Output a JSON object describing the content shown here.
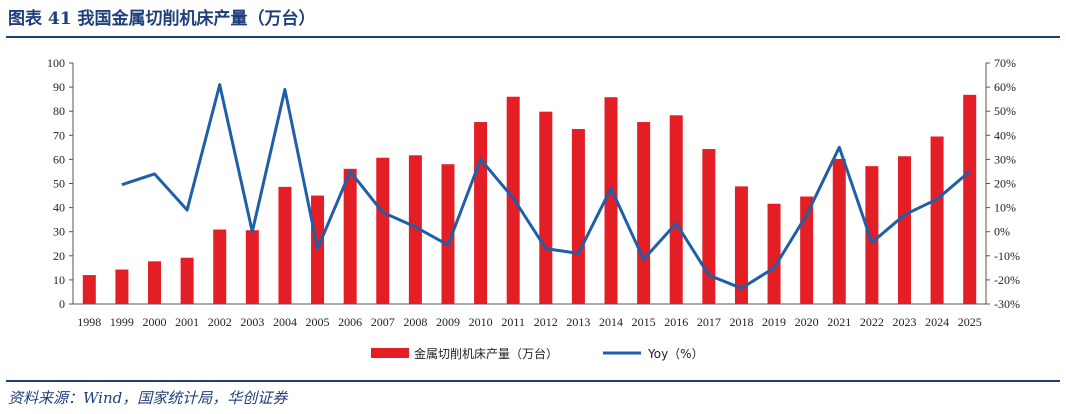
{
  "figure": {
    "title": "图表 41    我国金属切削机床产量（万台）",
    "source": "资料来源：Wind，国家统计局，华创证券"
  },
  "colors": {
    "bar": "#e31e24",
    "line": "#1f5fa8",
    "accent": "#1f3f7a"
  },
  "chart_data": {
    "type": "bar",
    "categories": [
      "1998",
      "1999",
      "2000",
      "2001",
      "2002",
      "2003",
      "2004",
      "2005",
      "2006",
      "2007",
      "2008",
      "2009",
      "2010",
      "2011",
      "2012",
      "2013",
      "2014",
      "2015",
      "2016",
      "2017",
      "2018",
      "2019",
      "2020",
      "2021",
      "2022",
      "2023",
      "2024",
      "2025"
    ],
    "series": [
      {
        "name": "金属切削机床产量（万台）",
        "type": "bar",
        "axis": "left",
        "values": [
          12,
          14.3,
          17.7,
          19.2,
          30.9,
          30.6,
          48.6,
          45,
          56.1,
          60.7,
          61.7,
          58,
          75.5,
          86,
          79.8,
          72.6,
          85.8,
          75.5,
          78.3,
          64.3,
          48.8,
          41.6,
          44.6,
          60.2,
          57.2,
          61.3,
          69.5,
          86.8
        ]
      },
      {
        "name": "Yoy（%）",
        "type": "line",
        "axis": "right",
        "values": [
          null,
          19.5,
          24,
          9,
          61,
          0,
          59,
          -7,
          25,
          8,
          2,
          -5.5,
          30,
          14,
          -7,
          -9,
          18,
          -11.5,
          3.5,
          -18,
          -23.5,
          -15,
          7,
          35,
          -4.5,
          7,
          13.5,
          25
        ]
      }
    ],
    "y_left": {
      "min": 0,
      "max": 100,
      "step": 10,
      "ticks": [
        "0",
        "10",
        "20",
        "30",
        "40",
        "50",
        "60",
        "70",
        "80",
        "90",
        "100"
      ]
    },
    "y_right": {
      "min": -30,
      "max": 70,
      "step": 10,
      "ticks": [
        "-30%",
        "-20%",
        "-10%",
        "0%",
        "10%",
        "20%",
        "30%",
        "40%",
        "50%",
        "60%",
        "70%"
      ]
    },
    "grid": false,
    "legend": "bottom-center"
  }
}
